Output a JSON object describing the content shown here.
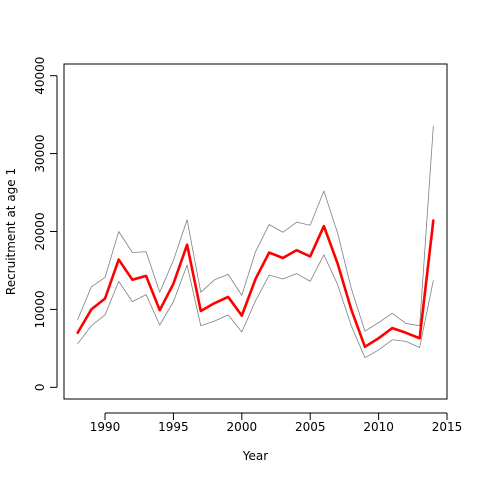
{
  "chart_data": {
    "type": "line",
    "title": "",
    "xlabel": "Year",
    "ylabel": "Recruitment at age 1",
    "xlim": [
      1987,
      2015
    ],
    "ylim": [
      -1500,
      41500
    ],
    "xticks": [
      1990,
      1995,
      2000,
      2005,
      2010,
      2015
    ],
    "yticks": [
      0,
      10000,
      20000,
      30000,
      40000
    ],
    "grid": false,
    "x": [
      1988,
      1989,
      1990,
      1991,
      1992,
      1993,
      1994,
      1995,
      1996,
      1997,
      1998,
      1999,
      2000,
      2001,
      2002,
      2003,
      2004,
      2005,
      2006,
      2007,
      2008,
      2009,
      2010,
      2011,
      2012,
      2013,
      2014
    ],
    "series": [
      {
        "role": "upper",
        "color": "#808080",
        "values": [
          8700,
          12900,
          14100,
          20000,
          17300,
          17400,
          12200,
          16300,
          21500,
          12200,
          13800,
          14500,
          11800,
          17400,
          20900,
          19900,
          21200,
          20800,
          25200,
          19800,
          12700,
          7200,
          8300,
          9500,
          8200,
          7900,
          33500
        ]
      },
      {
        "role": "estimate",
        "color": "#ff0000",
        "values": [
          7000,
          10000,
          11400,
          16400,
          13800,
          14300,
          9900,
          13300,
          18300,
          9800,
          10800,
          11600,
          9200,
          13900,
          17300,
          16600,
          17600,
          16800,
          20700,
          15900,
          10000,
          5200,
          6300,
          7600,
          7000,
          6300,
          21400
        ]
      },
      {
        "role": "lower",
        "color": "#808080",
        "values": [
          5600,
          7900,
          9300,
          13600,
          11000,
          11900,
          8000,
          11000,
          15700,
          7900,
          8500,
          9300,
          7100,
          11100,
          14400,
          13900,
          14600,
          13600,
          17000,
          13200,
          7900,
          3800,
          4800,
          6100,
          5900,
          5100,
          13700
        ]
      }
    ]
  }
}
